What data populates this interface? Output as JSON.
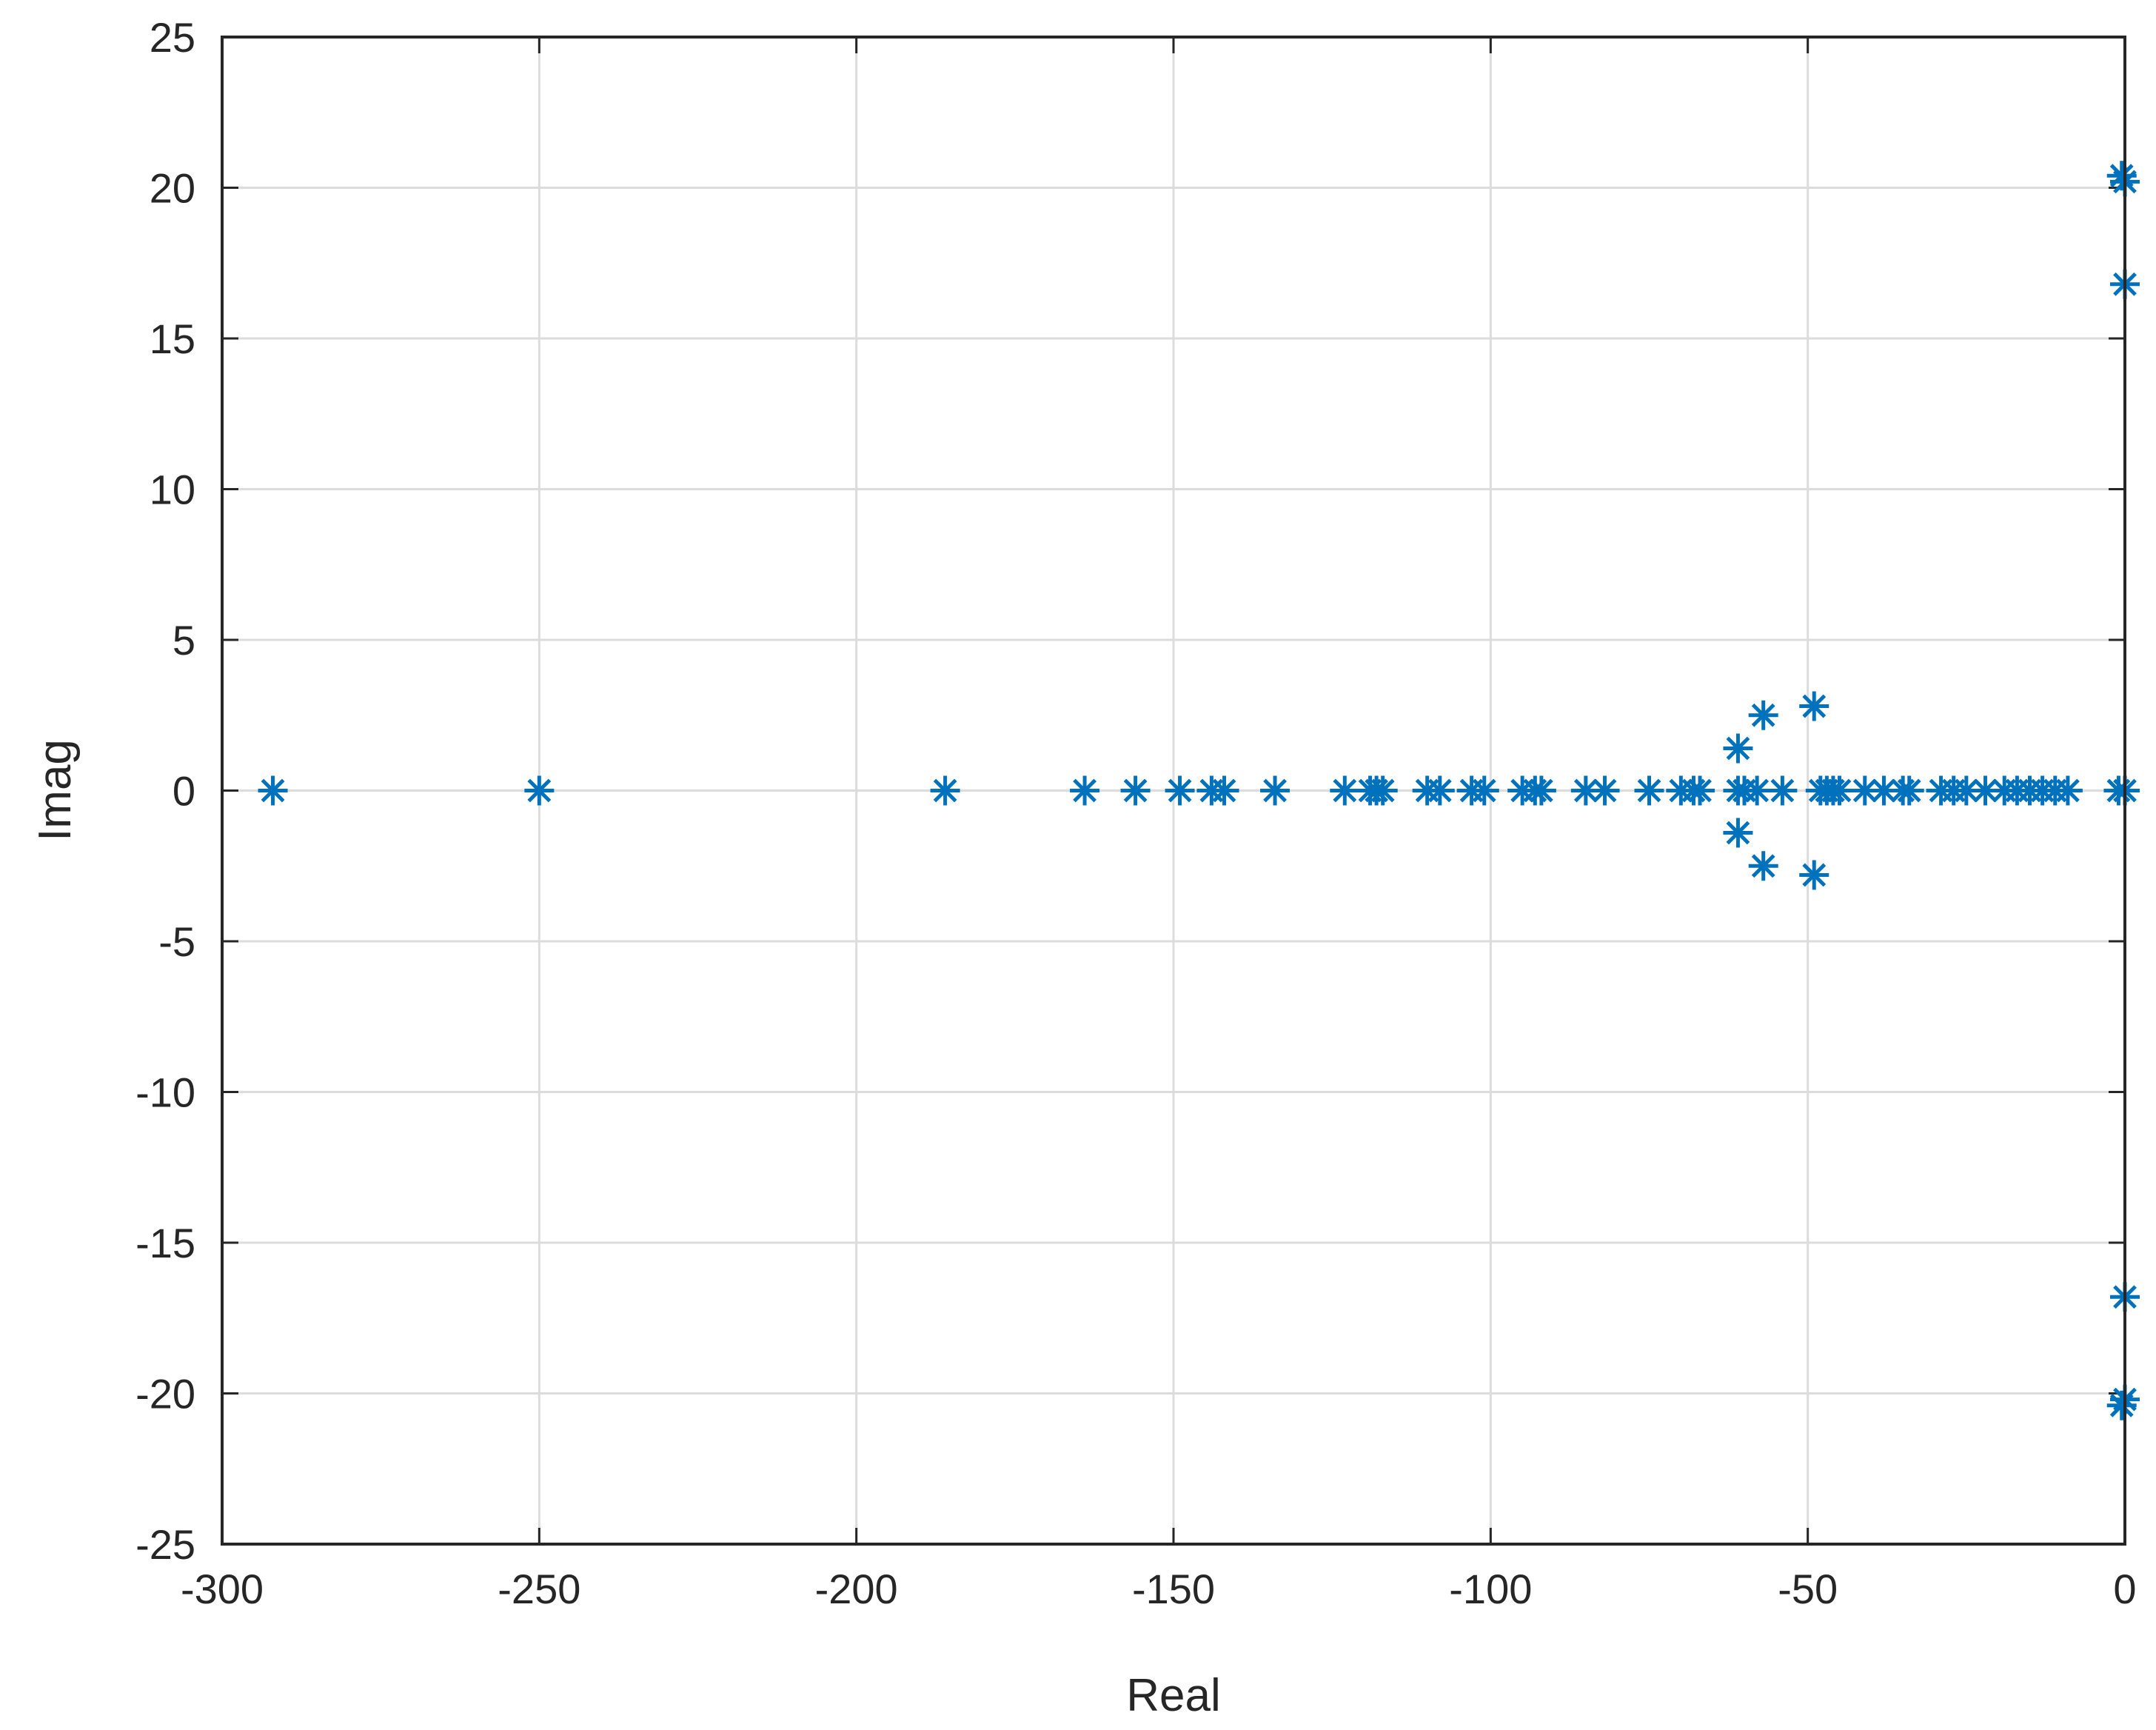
{
  "chart_data": {
    "type": "scatter",
    "title": "",
    "xlabel": "Real",
    "ylabel": "Imag",
    "xlim": [
      -300,
      0
    ],
    "ylim": [
      -25,
      25
    ],
    "xticks": [
      -300,
      -250,
      -200,
      -150,
      -100,
      -50,
      0
    ],
    "yticks": [
      -25,
      -20,
      -15,
      -10,
      -5,
      0,
      5,
      10,
      15,
      20,
      25
    ],
    "xtick_labels": [
      "-300",
      "-250",
      "-200",
      "-150",
      "-100",
      "-50",
      "0"
    ],
    "ytick_labels": [
      "-25",
      "-20",
      "-15",
      "-10",
      "-5",
      "0",
      "5",
      "10",
      "15",
      "20",
      "25"
    ],
    "grid": true,
    "marker": "asterisk",
    "color": "#0072BD",
    "series": [
      {
        "x": [
          -292,
          -250,
          -186,
          -164,
          -156,
          -149,
          -144,
          -142,
          -134,
          -123,
          -119,
          -118,
          -117,
          -110,
          -108,
          -103,
          -101,
          -95,
          -93,
          -92,
          -85,
          -82,
          -75,
          -70,
          -68,
          -67,
          -61,
          -60,
          -58,
          -54,
          -48,
          -47,
          -46,
          -45,
          -41,
          -38,
          -35,
          -34,
          -29,
          -27,
          -25,
          -22,
          -19,
          -17,
          -15,
          -13,
          -11,
          -9,
          -1,
          0,
          -61,
          -57,
          -49,
          -61,
          -57,
          -49,
          0,
          0,
          -0.5,
          0,
          0,
          -0.5
        ],
        "y": [
          0,
          0,
          0,
          0,
          0,
          0,
          0,
          0,
          0,
          0,
          0,
          0,
          0,
          0,
          0,
          0,
          0,
          0,
          0,
          0,
          0,
          0,
          0,
          0,
          0,
          0,
          0,
          0,
          0,
          0,
          0,
          0,
          0,
          0,
          0,
          0,
          0,
          0,
          0,
          0,
          0,
          0,
          0,
          0,
          0,
          0,
          0,
          0,
          0,
          0,
          1.4,
          2.5,
          2.8,
          -1.4,
          -2.5,
          -2.8,
          20.2,
          16.8,
          20.4,
          -20.2,
          -16.8,
          -20.4
        ]
      }
    ]
  }
}
